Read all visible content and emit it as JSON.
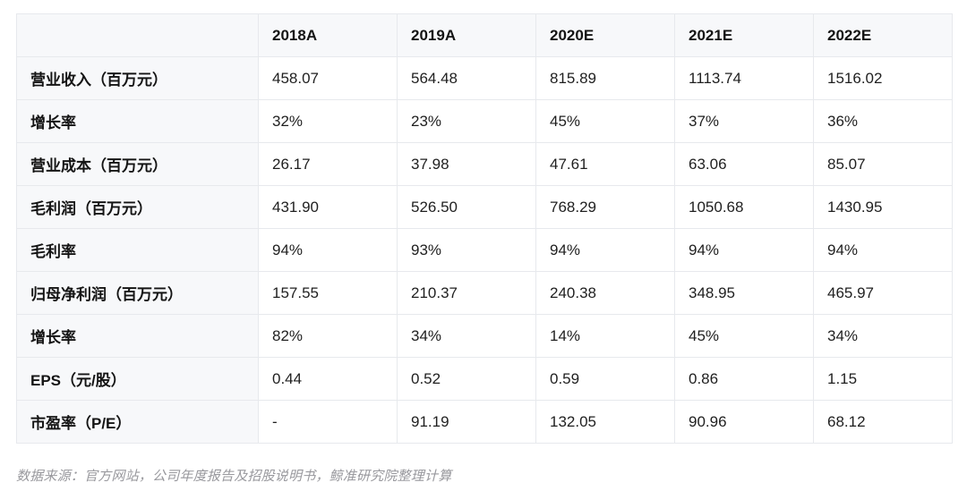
{
  "chart_data": {
    "type": "table",
    "columns": [
      "",
      "2018A",
      "2019A",
      "2020E",
      "2021E",
      "2022E"
    ],
    "rows": [
      {
        "label": "营业收入（百万元）",
        "values": [
          "458.07",
          "564.48",
          "815.89",
          "1113.74",
          "1516.02"
        ]
      },
      {
        "label": "增长率",
        "values": [
          "32%",
          "23%",
          "45%",
          "37%",
          "36%"
        ]
      },
      {
        "label": "营业成本（百万元）",
        "values": [
          "26.17",
          "37.98",
          "47.61",
          "63.06",
          "85.07"
        ]
      },
      {
        "label": "毛利润（百万元）",
        "values": [
          "431.90",
          "526.50",
          "768.29",
          "1050.68",
          "1430.95"
        ]
      },
      {
        "label": "毛利率",
        "values": [
          "94%",
          "93%",
          "94%",
          "94%",
          "94%"
        ]
      },
      {
        "label": "归母净利润（百万元）",
        "values": [
          "157.55",
          "210.37",
          "240.38",
          "348.95",
          "465.97"
        ]
      },
      {
        "label": "增长率",
        "values": [
          "82%",
          "34%",
          "14%",
          "45%",
          "34%"
        ]
      },
      {
        "label": "EPS（元/股）",
        "values": [
          "0.44",
          "0.52",
          "0.59",
          "0.86",
          "1.15"
        ]
      },
      {
        "label": "市盈率（P/E）",
        "values": [
          "-",
          "91.19",
          "132.05",
          "90.96",
          "68.12"
        ]
      }
    ],
    "title": "",
    "legend_position": "none",
    "grid": true
  },
  "footer": {
    "source_note": "数据来源：官方网站，公司年度报告及招股说明书，鲸准研究院整理计算"
  },
  "colors": {
    "header_bg": "#f7f8fa",
    "label_column_bg": "#f7f8fa",
    "cell_bg": "#ffffff",
    "border": "#e7e9ed",
    "text": "#1a1a1a",
    "source_text": "#98989d"
  }
}
